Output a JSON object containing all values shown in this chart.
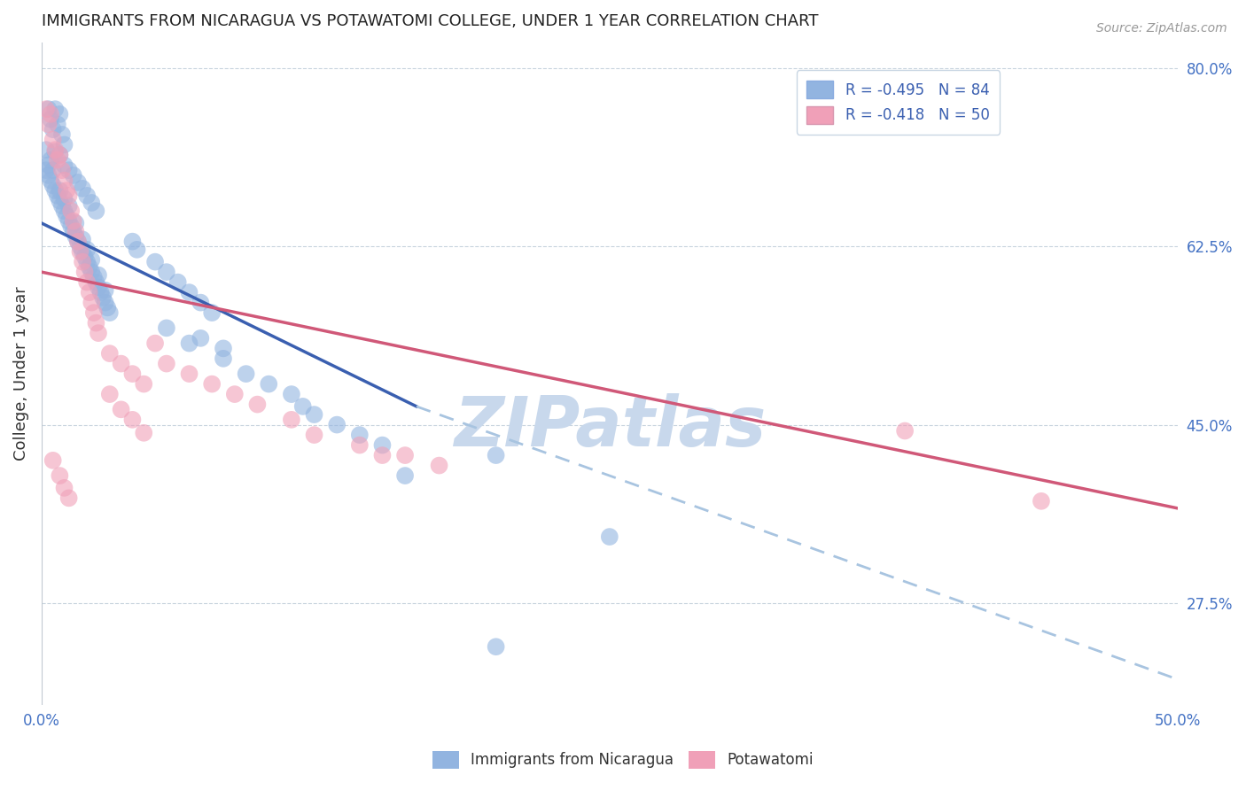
{
  "title": "IMMIGRANTS FROM NICARAGUA VS POTAWATOMI COLLEGE, UNDER 1 YEAR CORRELATION CHART",
  "source": "Source: ZipAtlas.com",
  "ylabel": "College, Under 1 year",
  "xlim": [
    0.0,
    0.5
  ],
  "ylim": [
    0.175,
    0.825
  ],
  "ytick_right_labels": [
    "80.0%",
    "62.5%",
    "45.0%",
    "27.5%"
  ],
  "ytick_right_values": [
    0.8,
    0.625,
    0.45,
    0.275
  ],
  "legend_r_blue": "R = -0.495",
  "legend_n_blue": "N = 84",
  "legend_r_pink": "R = -0.418",
  "legend_n_pink": "N = 50",
  "blue_color": "#92b4e0",
  "pink_color": "#f0a0b8",
  "blue_line_color": "#3a5fb0",
  "pink_line_color": "#d05878",
  "dashed_line_color": "#a8c4e0",
  "watermark": "ZIPatlas",
  "watermark_color": "#c8d8ec",
  "blue_scatter": [
    [
      0.002,
      0.7
    ],
    [
      0.003,
      0.695
    ],
    [
      0.003,
      0.705
    ],
    [
      0.004,
      0.69
    ],
    [
      0.005,
      0.685
    ],
    [
      0.005,
      0.7
    ],
    [
      0.006,
      0.68
    ],
    [
      0.007,
      0.675
    ],
    [
      0.008,
      0.67
    ],
    [
      0.008,
      0.68
    ],
    [
      0.009,
      0.665
    ],
    [
      0.01,
      0.66
    ],
    [
      0.01,
      0.672
    ],
    [
      0.011,
      0.655
    ],
    [
      0.012,
      0.65
    ],
    [
      0.012,
      0.665
    ],
    [
      0.013,
      0.645
    ],
    [
      0.014,
      0.64
    ],
    [
      0.015,
      0.635
    ],
    [
      0.015,
      0.648
    ],
    [
      0.016,
      0.63
    ],
    [
      0.017,
      0.625
    ],
    [
      0.018,
      0.62
    ],
    [
      0.018,
      0.632
    ],
    [
      0.019,
      0.615
    ],
    [
      0.02,
      0.61
    ],
    [
      0.02,
      0.622
    ],
    [
      0.021,
      0.605
    ],
    [
      0.022,
      0.6
    ],
    [
      0.022,
      0.612
    ],
    [
      0.023,
      0.595
    ],
    [
      0.024,
      0.59
    ],
    [
      0.025,
      0.585
    ],
    [
      0.025,
      0.597
    ],
    [
      0.026,
      0.58
    ],
    [
      0.027,
      0.575
    ],
    [
      0.028,
      0.57
    ],
    [
      0.028,
      0.582
    ],
    [
      0.029,
      0.565
    ],
    [
      0.03,
      0.56
    ],
    [
      0.003,
      0.76
    ],
    [
      0.004,
      0.75
    ],
    [
      0.005,
      0.74
    ],
    [
      0.006,
      0.76
    ],
    [
      0.007,
      0.745
    ],
    [
      0.008,
      0.755
    ],
    [
      0.009,
      0.735
    ],
    [
      0.01,
      0.725
    ],
    [
      0.002,
      0.72
    ],
    [
      0.004,
      0.71
    ],
    [
      0.006,
      0.718
    ],
    [
      0.008,
      0.715
    ],
    [
      0.01,
      0.705
    ],
    [
      0.012,
      0.7
    ],
    [
      0.014,
      0.695
    ],
    [
      0.016,
      0.688
    ],
    [
      0.018,
      0.682
    ],
    [
      0.02,
      0.675
    ],
    [
      0.022,
      0.668
    ],
    [
      0.024,
      0.66
    ],
    [
      0.04,
      0.63
    ],
    [
      0.042,
      0.622
    ],
    [
      0.05,
      0.61
    ],
    [
      0.055,
      0.6
    ],
    [
      0.06,
      0.59
    ],
    [
      0.065,
      0.58
    ],
    [
      0.07,
      0.57
    ],
    [
      0.075,
      0.56
    ],
    [
      0.055,
      0.545
    ],
    [
      0.065,
      0.53
    ],
    [
      0.08,
      0.515
    ],
    [
      0.09,
      0.5
    ],
    [
      0.1,
      0.49
    ],
    [
      0.11,
      0.48
    ],
    [
      0.115,
      0.468
    ],
    [
      0.12,
      0.46
    ],
    [
      0.13,
      0.45
    ],
    [
      0.14,
      0.44
    ],
    [
      0.15,
      0.43
    ],
    [
      0.2,
      0.42
    ],
    [
      0.16,
      0.4
    ],
    [
      0.07,
      0.535
    ],
    [
      0.08,
      0.525
    ],
    [
      0.2,
      0.232
    ],
    [
      0.25,
      0.34
    ]
  ],
  "pink_scatter": [
    [
      0.002,
      0.76
    ],
    [
      0.003,
      0.745
    ],
    [
      0.004,
      0.755
    ],
    [
      0.005,
      0.73
    ],
    [
      0.006,
      0.72
    ],
    [
      0.007,
      0.71
    ],
    [
      0.008,
      0.715
    ],
    [
      0.009,
      0.7
    ],
    [
      0.01,
      0.69
    ],
    [
      0.011,
      0.68
    ],
    [
      0.012,
      0.675
    ],
    [
      0.013,
      0.66
    ],
    [
      0.014,
      0.65
    ],
    [
      0.015,
      0.64
    ],
    [
      0.016,
      0.63
    ],
    [
      0.017,
      0.62
    ],
    [
      0.018,
      0.61
    ],
    [
      0.019,
      0.6
    ],
    [
      0.02,
      0.59
    ],
    [
      0.021,
      0.58
    ],
    [
      0.022,
      0.57
    ],
    [
      0.023,
      0.56
    ],
    [
      0.024,
      0.55
    ],
    [
      0.025,
      0.54
    ],
    [
      0.03,
      0.52
    ],
    [
      0.035,
      0.51
    ],
    [
      0.04,
      0.5
    ],
    [
      0.045,
      0.49
    ],
    [
      0.05,
      0.53
    ],
    [
      0.055,
      0.51
    ],
    [
      0.065,
      0.5
    ],
    [
      0.075,
      0.49
    ],
    [
      0.085,
      0.48
    ],
    [
      0.095,
      0.47
    ],
    [
      0.11,
      0.455
    ],
    [
      0.12,
      0.44
    ],
    [
      0.14,
      0.43
    ],
    [
      0.15,
      0.42
    ],
    [
      0.16,
      0.42
    ],
    [
      0.175,
      0.41
    ],
    [
      0.03,
      0.48
    ],
    [
      0.035,
      0.465
    ],
    [
      0.04,
      0.455
    ],
    [
      0.045,
      0.442
    ],
    [
      0.005,
      0.415
    ],
    [
      0.008,
      0.4
    ],
    [
      0.01,
      0.388
    ],
    [
      0.012,
      0.378
    ],
    [
      0.38,
      0.444
    ],
    [
      0.44,
      0.375
    ]
  ],
  "blue_trendline_solid": [
    [
      0.0,
      0.648
    ],
    [
      0.165,
      0.468
    ]
  ],
  "blue_trendline_dashed": [
    [
      0.165,
      0.468
    ],
    [
      0.5,
      0.2
    ]
  ],
  "pink_trendline": [
    [
      0.0,
      0.6
    ],
    [
      0.5,
      0.368
    ]
  ]
}
